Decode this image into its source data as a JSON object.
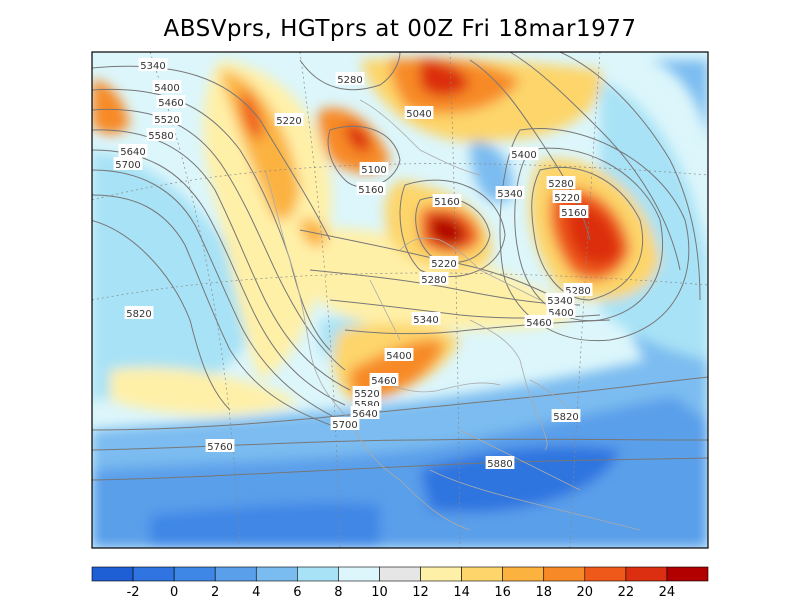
{
  "title": "ABSVprs, HGTprs at 00Z Fri 18mar1977",
  "colors": {
    "c_m4": "#1e5fd6",
    "c_m2": "#2f74e0",
    "c_0": "#3f87e6",
    "c_2": "#5a9fea",
    "c_4": "#7bbcf0",
    "c_6": "#a8e2f6",
    "c_8": "#dcf6fb",
    "c_10": "#e6e6e6",
    "c_12": "#fff0a8",
    "c_14": "#fdd56b",
    "c_16": "#fbb23f",
    "c_18": "#f78a26",
    "c_20": "#ef5a1a",
    "c_22": "#dc2e10",
    "c_24": "#b20000",
    "contour": "#777777",
    "coast": "#aaaaaa",
    "frame": "#000000"
  },
  "contour_labels": [
    "5340",
    "5400",
    "5460",
    "5520",
    "5580",
    "5640",
    "5700",
    "5280",
    "5220",
    "5040",
    "5100",
    "5160",
    "5400",
    "5340",
    "5280",
    "5220",
    "5160",
    "5160",
    "5220",
    "5280",
    "5280",
    "5340",
    "5400",
    "5460",
    "5820",
    "5340",
    "5400",
    "5460",
    "5520",
    "5580",
    "5640",
    "5700",
    "5820",
    "5760",
    "5880"
  ],
  "colorbar": {
    "ticks": [
      "-2",
      "0",
      "2",
      "4",
      "6",
      "8",
      "10",
      "12",
      "14",
      "16",
      "18",
      "20",
      "22",
      "24"
    ]
  }
}
